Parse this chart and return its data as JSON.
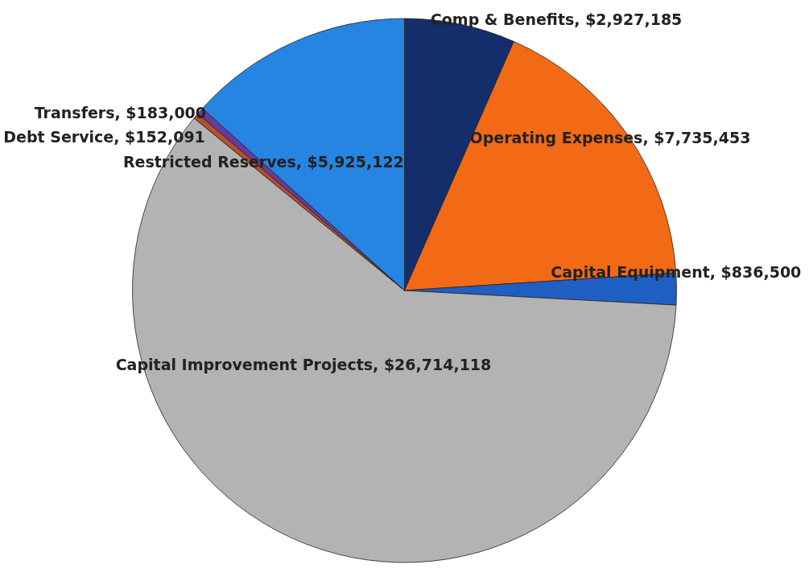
{
  "chart_data": {
    "type": "pie",
    "categories": [
      "Comp & Benefits",
      "Operating Expenses",
      "Capital Equipment",
      "Capital Improvement Projects",
      "Debt Service",
      "Transfers",
      "Restricted Reserves"
    ],
    "values": [
      2927185,
      7735453,
      836500,
      26714118,
      152091,
      183000,
      5925122
    ],
    "value_labels": [
      "$2,927,185",
      "$7,735,453",
      "$836,500",
      "$26,714,118",
      "$152,091",
      "$183,000",
      "$5,925,122"
    ],
    "colors": [
      "#142d6b",
      "#f36a16",
      "#1f5fc4",
      "#b3b3b3",
      "#b5502a",
      "#6a3a9a",
      "#2684e2"
    ]
  }
}
